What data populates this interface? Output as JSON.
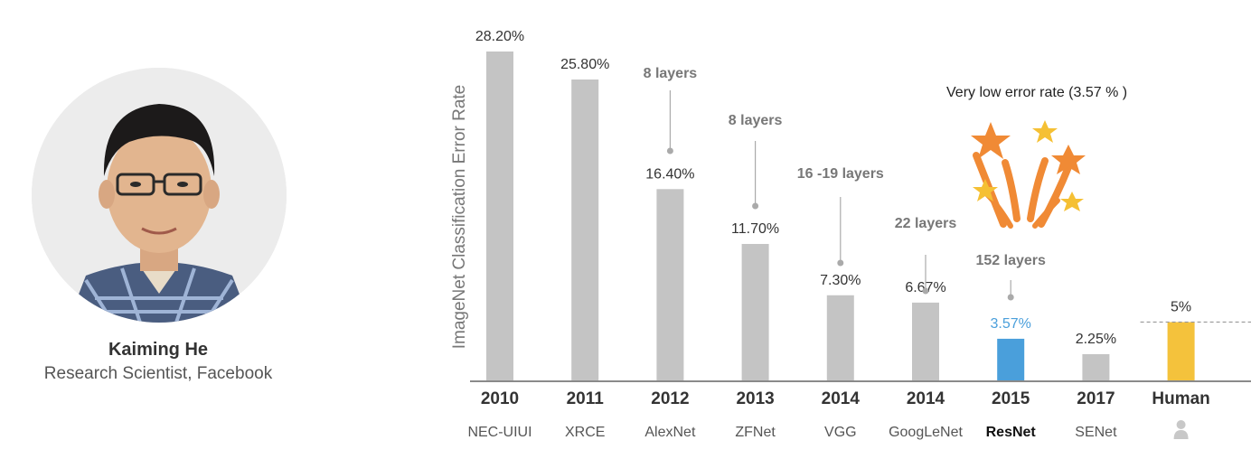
{
  "profile": {
    "name": "Kaiming He",
    "role": "Research Scientist, Facebook"
  },
  "chart_data": {
    "type": "bar",
    "ylabel": "ImageNet Classification Error Rate",
    "ylim": [
      0,
      30
    ],
    "grid": false,
    "bars": [
      {
        "year": "2010",
        "name": "NEC-UIUI",
        "value": 28.2,
        "label": "28.20%",
        "color": "#c4c4c4"
      },
      {
        "year": "2011",
        "name": "XRCE",
        "value": 25.8,
        "label": "25.80%",
        "color": "#c4c4c4"
      },
      {
        "year": "2012",
        "name": "AlexNet",
        "value": 16.4,
        "label": "16.40%",
        "color": "#c4c4c4",
        "layers": "8 layers"
      },
      {
        "year": "2013",
        "name": "ZFNet",
        "value": 11.7,
        "label": "11.70%",
        "color": "#c4c4c4",
        "layers": "8 layers"
      },
      {
        "year": "2014",
        "name": "VGG",
        "value": 7.3,
        "label": "7.30%",
        "color": "#c4c4c4",
        "layers": "16 -19 layers"
      },
      {
        "year": "2014",
        "name": "GoogLeNet",
        "value": 6.67,
        "label": "6.67%",
        "color": "#c4c4c4",
        "layers": "22 layers"
      },
      {
        "year": "2015",
        "name": "ResNet",
        "value": 3.57,
        "label": "3.57%",
        "color": "#4a9fdb",
        "layers": "152 layers",
        "highlight": true
      },
      {
        "year": "2017",
        "name": "SENet",
        "value": 2.25,
        "label": "2.25%",
        "color": "#c4c4c4"
      },
      {
        "year": "Human",
        "name": "",
        "value": 5,
        "label": "5%",
        "color": "#f4c23c",
        "icon": "person-icon"
      }
    ],
    "reference_line": {
      "value": 5,
      "style": "dashed"
    },
    "annotation": {
      "text": "Very low error rate   (3.57 % )",
      "icon": "fireworks-stars-icon"
    }
  }
}
